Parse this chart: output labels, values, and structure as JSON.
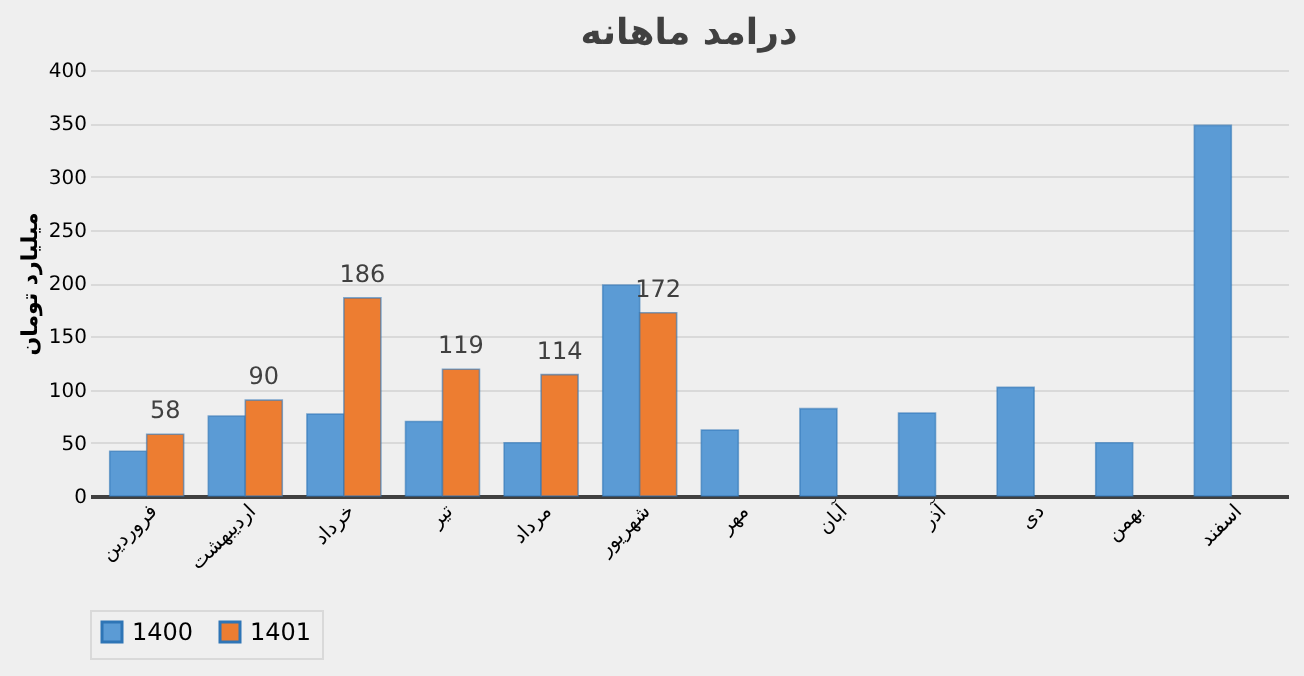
{
  "chart_data": {
    "type": "bar",
    "title": "درامد ماهانه",
    "ylabel": "میلیارد تومان",
    "categories": [
      "فروردین",
      "اردیبهشت",
      "خرداد",
      "تیر",
      "مرداد",
      "شهریور",
      "مهر",
      "آبان",
      "آذر",
      "دی",
      "بهمن",
      "اسفند"
    ],
    "series": [
      {
        "name": "1400",
        "color": "#5b9bd5",
        "values": [
          42,
          75,
          77,
          70,
          50,
          198,
          62,
          82,
          78,
          102,
          50,
          348
        ]
      },
      {
        "name": "1401",
        "color": "#ed7d31",
        "values": [
          58,
          90,
          186,
          119,
          114,
          172,
          null,
          null,
          null,
          null,
          null,
          null
        ],
        "value_labels": [
          "58",
          "90",
          "186",
          "119",
          "114",
          "172",
          null,
          null,
          null,
          null,
          null,
          null
        ]
      }
    ],
    "ylim": [
      0,
      400
    ],
    "yticks": [
      0,
      50,
      100,
      150,
      200,
      250,
      300,
      350,
      400
    ],
    "grid": "y",
    "legend": "bottom"
  }
}
